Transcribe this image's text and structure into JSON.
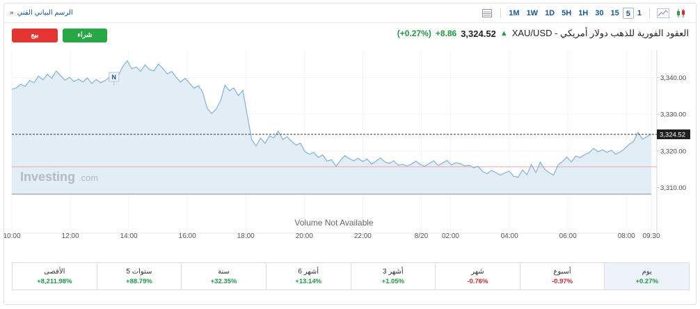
{
  "toolbar": {
    "full_chart_link": "الرسم البياني الفني",
    "timeframes": [
      "1",
      "5",
      "15",
      "30",
      "1H",
      "5H",
      "1D",
      "1W",
      "1M"
    ],
    "active_timeframe": "5"
  },
  "header": {
    "instrument": "XAU/USD - العقود الفورية للذهب دولار أمريكي",
    "price": "3,324.52",
    "change": "+8.86",
    "change_pct": "(+0.27%)",
    "sell_label": "بيع",
    "buy_label": "شراء"
  },
  "chart": {
    "watermark_brand": "Investing",
    "watermark_suffix": ".com",
    "volume_note": "Volume Not Available",
    "news_marker": "N",
    "current_price_label": "3,324.52",
    "reference_line_value": 3315.66
  },
  "chart_data": {
    "type": "area",
    "x_tick_labels": [
      "10:00",
      "12:00",
      "14:00",
      "16:00",
      "18:00",
      "20:00",
      "22:00",
      "8/20",
      "02:00",
      "04:00",
      "06:00",
      "08:00",
      "09:30"
    ],
    "y_tick_labels": [
      "3,340.00",
      "3,330.00",
      "3,320.00",
      "3,310.00"
    ],
    "ylim": [
      3308.2,
      3347.5
    ],
    "y": [
      3336.8,
      3337.2,
      3338.2,
      3337.6,
      3339.2,
      3338.6,
      3340.4,
      3339.4,
      3340.9,
      3339.8,
      3341.8,
      3340.5,
      3339.3,
      3340.1,
      3338.9,
      3339.6,
      3338.8,
      3339.9,
      3338.4,
      3339.5,
      3338.6,
      3339.2,
      3340.1,
      3338.8,
      3340.6,
      3343.1,
      3344.6,
      3342.4,
      3342.9,
      3341.7,
      3343.5,
      3342.2,
      3341.8,
      3343.7,
      3342.5,
      3341.0,
      3341.7,
      3340.1,
      3338.8,
      3339.8,
      3338.5,
      3337.1,
      3337.8,
      3336.0,
      3331.6,
      3330.2,
      3331.4,
      3333.7,
      3337.9,
      3336.4,
      3337.2,
      3335.1,
      3336.5,
      3329.9,
      3323.2,
      3321.3,
      3323.5,
      3322.1,
      3324.1,
      3323.6,
      3325.4,
      3323.1,
      3323.9,
      3322.6,
      3321.6,
      3322.1,
      3319.8,
      3319.1,
      3319.6,
      3318.2,
      3318.9,
      3317.2,
      3317.6,
      3315.8,
      3317.4,
      3318.7,
      3317.9,
      3317.3,
      3318.0,
      3317.1,
      3317.8,
      3316.4,
      3317.2,
      3318.1,
      3317.0,
      3316.6,
      3317.3,
      3316.1,
      3316.3,
      3315.9,
      3316.4,
      3317.2,
      3316.3,
      3315.8,
      3316.6,
      3317.3,
      3316.0,
      3316.7,
      3317.4,
      3316.2,
      3316.8,
      3316.5,
      3315.9,
      3316.1,
      3315.4,
      3315.8,
      3314.4,
      3313.8,
      3314.7,
      3314.1,
      3313.4,
      3314.0,
      3314.5,
      3313.1,
      3312.8,
      3314.8,
      3313.5,
      3316.3,
      3314.1,
      3316.9,
      3315.0,
      3314.1,
      3313.4,
      3316.2,
      3317.1,
      3318.3,
      3317.0,
      3318.6,
      3318.2,
      3319.0,
      3319.5,
      3320.7,
      3319.8,
      3320.3,
      3319.6,
      3320.2,
      3319.1,
      3319.7,
      3320.6,
      3321.8,
      3322.6,
      3325.1,
      3323.2,
      3323.9,
      3324.52
    ],
    "current_price": 3324.52,
    "reference_line": 3315.66
  },
  "performance": [
    {
      "label": "يوم",
      "value": "+0.27%",
      "dir": "pos",
      "active": true
    },
    {
      "label": "أسبوع",
      "value": "-0.97%",
      "dir": "neg",
      "active": false
    },
    {
      "label": "شهر",
      "value": "-0.76%",
      "dir": "neg",
      "active": false
    },
    {
      "label": "3 أشهر",
      "value": "+1.05%",
      "dir": "pos",
      "active": false
    },
    {
      "label": "6 أشهر",
      "value": "+13.14%",
      "dir": "pos",
      "active": false
    },
    {
      "label": "سنة",
      "value": "+32.35%",
      "dir": "pos",
      "active": false
    },
    {
      "label": "5 سنوات",
      "value": "+88.79%",
      "dir": "pos",
      "active": false
    },
    {
      "label": "الأقصى",
      "value": "+8,211.98%",
      "dir": "pos",
      "active": false
    }
  ],
  "colors": {
    "line": "#7fb2dc",
    "fill": "#e3edf6",
    "positive": "#1e9b41",
    "negative": "#d9262c",
    "reference": "#f0a5a5",
    "price_tag": "#1f1f1f"
  }
}
